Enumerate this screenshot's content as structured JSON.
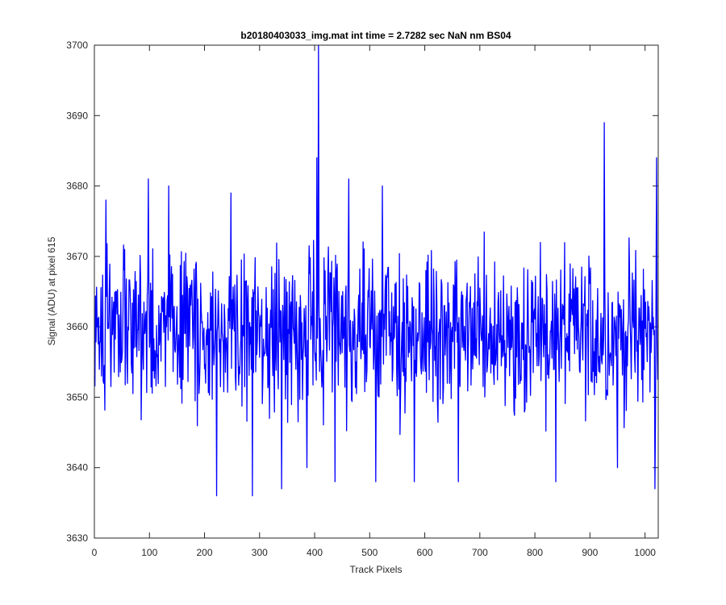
{
  "chart_data": {
    "type": "line",
    "title": "b20180403033_img.mat int time = 2.7282 sec  NaN nm BS04",
    "xlabel": "Track Pixels",
    "ylabel": "Signal (ADU) at pixel 615",
    "xlim": [
      0,
      1024
    ],
    "ylim": [
      3630,
      3700
    ],
    "xticks": [
      0,
      100,
      200,
      300,
      400,
      500,
      600,
      700,
      800,
      900,
      1000
    ],
    "yticks": [
      3630,
      3640,
      3650,
      3660,
      3670,
      3680,
      3690,
      3700
    ],
    "grid": false,
    "series": [
      {
        "color": "#0000ff",
        "n_points": 1024,
        "baseline": 3659,
        "typical_range": [
          3645,
          3672
        ],
        "peaks": [
          {
            "x": 21,
            "y": 3678
          },
          {
            "x": 98,
            "y": 3681
          },
          {
            "x": 135,
            "y": 3680
          },
          {
            "x": 222,
            "y": 3636
          },
          {
            "x": 248,
            "y": 3679
          },
          {
            "x": 287,
            "y": 3636
          },
          {
            "x": 340,
            "y": 3637
          },
          {
            "x": 386,
            "y": 3640
          },
          {
            "x": 404,
            "y": 3684
          },
          {
            "x": 407,
            "y": 3700
          },
          {
            "x": 437,
            "y": 3638
          },
          {
            "x": 462,
            "y": 3681
          },
          {
            "x": 511,
            "y": 3638
          },
          {
            "x": 523,
            "y": 3680
          },
          {
            "x": 581,
            "y": 3638
          },
          {
            "x": 661,
            "y": 3638
          },
          {
            "x": 838,
            "y": 3638
          },
          {
            "x": 926,
            "y": 3689
          },
          {
            "x": 950,
            "y": 3640
          },
          {
            "x": 1018,
            "y": 3637
          },
          {
            "x": 1021,
            "y": 3684
          }
        ]
      }
    ]
  }
}
